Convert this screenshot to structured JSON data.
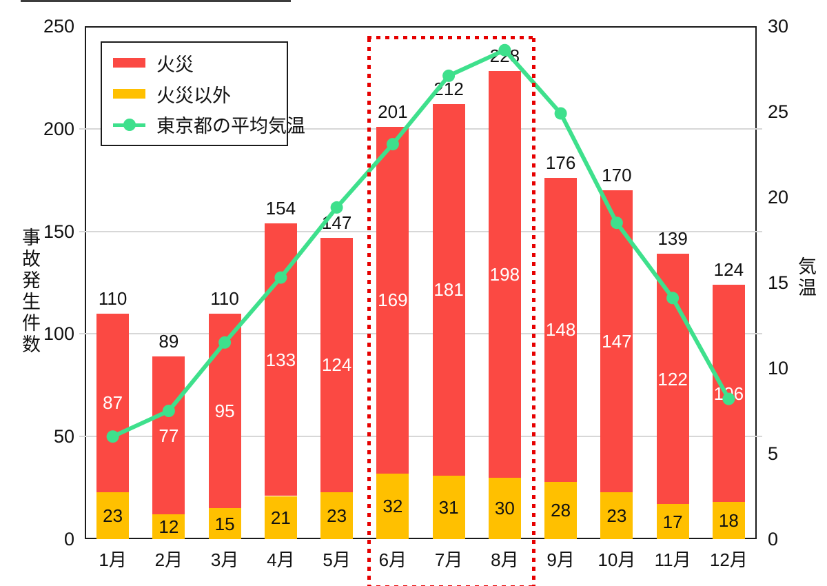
{
  "axes": {
    "left_title": "事故発生件数",
    "right_title": "気温"
  },
  "legend": {
    "items": [
      {
        "label": "火災",
        "marker": "swatch",
        "color": "#fb4943"
      },
      {
        "label": "火災以外",
        "marker": "swatch",
        "color": "#ffc000"
      },
      {
        "label": "東京都の平均気温",
        "marker": "line-dot",
        "color": "#3ee08c"
      }
    ]
  },
  "highlight": {
    "months": [
      "6月",
      "7月",
      "8月"
    ],
    "color": "#e60000",
    "style": "dotted-rectangle"
  },
  "chart_data": [
    {
      "type": "bar",
      "stacked": true,
      "categories": [
        "1月",
        "2月",
        "3月",
        "4月",
        "5月",
        "6月",
        "7月",
        "8月",
        "9月",
        "10月",
        "11月",
        "12月"
      ],
      "series": [
        {
          "name": "火災以外",
          "color": "#ffc000",
          "label_color": "#111111",
          "values": [
            23,
            12,
            15,
            21,
            23,
            32,
            31,
            30,
            28,
            23,
            17,
            18
          ]
        },
        {
          "name": "火災",
          "color": "#fb4943",
          "label_color": "#ffffff",
          "values": [
            87,
            77,
            95,
            133,
            124,
            169,
            181,
            198,
            148,
            147,
            122,
            106
          ]
        }
      ],
      "totals": [
        110,
        89,
        110,
        154,
        147,
        201,
        212,
        228,
        176,
        170,
        139,
        124
      ],
      "ylabel": "事故発生件数",
      "ylim": [
        0,
        250
      ],
      "yticks": [
        0,
        50,
        100,
        150,
        200,
        250
      ],
      "axis": "left",
      "grid": true,
      "legend_position": "top-left-inside"
    },
    {
      "type": "line",
      "categories": [
        "1月",
        "2月",
        "3月",
        "4月",
        "5月",
        "6月",
        "7月",
        "8月",
        "9月",
        "10月",
        "11月",
        "12月"
      ],
      "series": [
        {
          "name": "東京都の平均気温",
          "color": "#3ee08c",
          "values": [
            6.0,
            7.5,
            11.5,
            15.3,
            19.4,
            23.1,
            27.1,
            28.6,
            24.9,
            18.5,
            14.1,
            8.2
          ]
        }
      ],
      "ylabel": "気温",
      "ylim": [
        0,
        30
      ],
      "yticks": [
        0,
        5,
        10,
        15,
        20,
        25,
        30
      ],
      "axis": "right",
      "marker": "circle"
    }
  ]
}
